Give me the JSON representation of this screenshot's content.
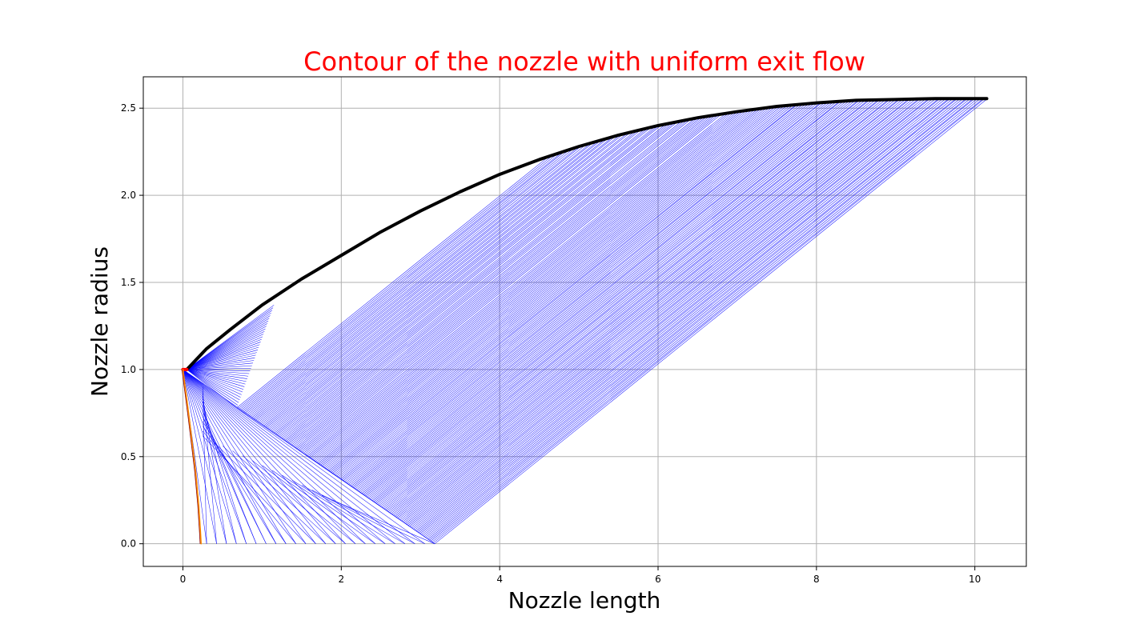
{
  "chart_data": {
    "type": "line",
    "title": "Contour of the nozzle with uniform exit flow",
    "xlabel": "Nozzle length",
    "ylabel": "Nozzle radius",
    "xlim": [
      -0.5,
      10.65
    ],
    "ylim": [
      -0.13,
      2.68
    ],
    "xticks": [
      0,
      2,
      4,
      6,
      8,
      10
    ],
    "yticks": [
      0.0,
      0.5,
      1.0,
      1.5,
      2.0,
      2.5
    ],
    "xtick_labels": [
      "0",
      "2",
      "4",
      "6",
      "8",
      "10"
    ],
    "ytick_labels": [
      "0.0",
      "0.5",
      "1.0",
      "1.5",
      "2.0",
      "2.5"
    ],
    "grid": true,
    "colors": {
      "title": "#ff0000",
      "wall": "#000000",
      "characteristics": "#0000ff",
      "throat": "#ff0000",
      "sonic_line": "#ff8c00",
      "grid": "#b0b0b0"
    },
    "series": [
      {
        "role": "wall",
        "x": [
          0.05,
          0.3,
          0.6,
          1.0,
          1.5,
          2.0,
          2.5,
          3.0,
          3.5,
          4.0,
          4.5,
          5.0,
          5.5,
          6.0,
          6.5,
          7.0,
          7.5,
          8.0,
          8.5,
          9.0,
          9.5,
          10.0,
          10.15
        ],
        "y": [
          1.0,
          1.12,
          1.23,
          1.37,
          1.52,
          1.655,
          1.79,
          1.91,
          2.02,
          2.12,
          2.205,
          2.28,
          2.345,
          2.4,
          2.445,
          2.48,
          2.51,
          2.53,
          2.545,
          2.55,
          2.555,
          2.555,
          2.555
        ]
      },
      {
        "role": "throat",
        "x": [
          0.0,
          0.05
        ],
        "y": [
          1.0,
          1.0
        ]
      },
      {
        "role": "sonic_line",
        "x": [
          0.0,
          0.08,
          0.16,
          0.2,
          0.22,
          0.23
        ],
        "y": [
          1.0,
          0.72,
          0.42,
          0.22,
          0.08,
          0.0
        ]
      }
    ]
  }
}
